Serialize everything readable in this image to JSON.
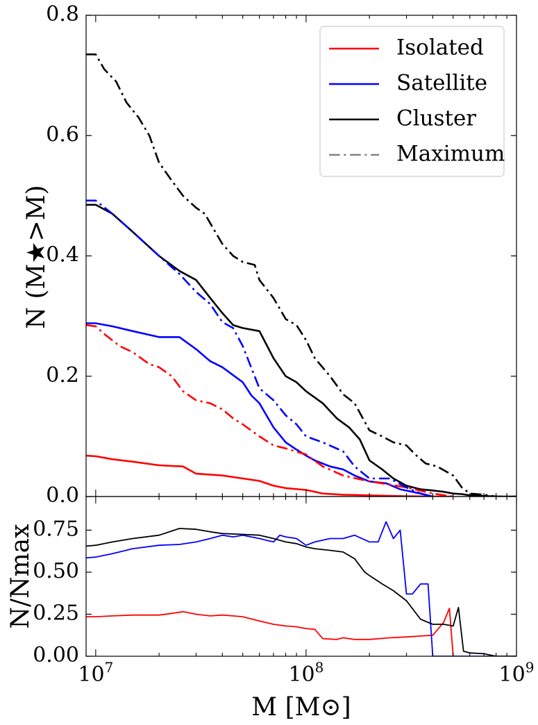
{
  "chart_data": [
    {
      "type": "line",
      "panel": "top",
      "title": "",
      "xlabel": "",
      "ylabel": "N (M★>M)",
      "xscale": "log",
      "xlim": [
        9000000,
        1000000000
      ],
      "ylim": [
        0,
        0.8
      ],
      "yticks": [
        "0.0",
        "0.2",
        "0.4",
        "0.6",
        "0.8"
      ],
      "legend_position": "top-right",
      "legend": [
        {
          "label": "Isolated",
          "color": "#ff0000",
          "style": "solid"
        },
        {
          "label": "Satellite",
          "color": "#0000ff",
          "style": "solid"
        },
        {
          "label": "Cluster",
          "color": "#000000",
          "style": "solid"
        },
        {
          "label": "Maximum",
          "color": "#808080",
          "style": "dashdot"
        }
      ],
      "series": [
        {
          "name": "Isolated",
          "color": "#ff0000",
          "style": "solid",
          "x": [
            9000000.0,
            10000000.0,
            12000000.0,
            15000000.0,
            20000000.0,
            26000000.0,
            30000000.0,
            40000000.0,
            50000000.0,
            60000000.0,
            70000000.0,
            80000000.0,
            100000000.0,
            120000000.0,
            150000000.0,
            200000000.0,
            250000000.0,
            300000000.0,
            400000000.0,
            500000000.0
          ],
          "y": [
            0.068,
            0.067,
            0.062,
            0.058,
            0.052,
            0.05,
            0.038,
            0.035,
            0.03,
            0.026,
            0.018,
            0.014,
            0.011,
            0.005,
            0.003,
            0.002,
            0.001,
            0.0005,
            0.0,
            0.0
          ]
        },
        {
          "name": "Satellite",
          "color": "#0000ff",
          "style": "solid",
          "x": [
            9000000.0,
            10000000.0,
            12000000.0,
            15000000.0,
            20000000.0,
            25000000.0,
            30000000.0,
            35000000.0,
            40000000.0,
            50000000.0,
            55000000.0,
            60000000.0,
            70000000.0,
            80000000.0,
            90000000.0,
            100000000.0,
            110000000.0,
            130000000.0,
            150000000.0,
            170000000.0,
            200000000.0,
            240000000.0,
            280000000.0,
            350000000.0,
            400000000.0
          ],
          "y": [
            0.288,
            0.288,
            0.283,
            0.275,
            0.265,
            0.265,
            0.245,
            0.225,
            0.215,
            0.19,
            0.168,
            0.155,
            0.115,
            0.09,
            0.078,
            0.068,
            0.06,
            0.05,
            0.045,
            0.035,
            0.025,
            0.022,
            0.012,
            0.005,
            0.0
          ]
        },
        {
          "name": "Cluster",
          "color": "#000000",
          "style": "solid",
          "x": [
            9000000.0,
            10000000.0,
            12000000.0,
            15000000.0,
            20000000.0,
            25000000.0,
            30000000.0,
            35000000.0,
            40000000.0,
            45000000.0,
            50000000.0,
            60000000.0,
            70000000.0,
            80000000.0,
            90000000.0,
            100000000.0,
            120000000.0,
            140000000.0,
            160000000.0,
            180000000.0,
            200000000.0,
            230000000.0,
            260000000.0,
            300000000.0,
            350000000.0,
            400000000.0,
            450000000.0,
            500000000.0,
            550000000.0,
            600000000.0,
            700000000.0,
            800000000.0,
            1000000000.0
          ],
          "y": [
            0.485,
            0.485,
            0.47,
            0.44,
            0.4,
            0.375,
            0.36,
            0.33,
            0.305,
            0.285,
            0.28,
            0.275,
            0.23,
            0.2,
            0.19,
            0.175,
            0.155,
            0.13,
            0.115,
            0.095,
            0.06,
            0.045,
            0.03,
            0.018,
            0.012,
            0.01,
            0.008,
            0.005,
            0.004,
            0.002,
            0.001,
            0.0,
            0.0
          ]
        },
        {
          "name": "Isolated maximum",
          "color": "#ff0000",
          "style": "dashdot",
          "x": [
            9000000.0,
            10000000.0,
            11000000.0,
            13000000.0,
            15000000.0,
            18000000.0,
            20000000.0,
            23000000.0,
            26000000.0,
            30000000.0,
            35000000.0,
            40000000.0,
            45000000.0,
            50000000.0,
            60000000.0,
            70000000.0,
            80000000.0,
            100000000.0,
            120000000.0,
            150000000.0,
            200000000.0,
            250000000.0,
            300000000.0,
            400000000.0,
            500000000.0
          ],
          "y": [
            0.285,
            0.283,
            0.27,
            0.25,
            0.24,
            0.22,
            0.215,
            0.2,
            0.175,
            0.16,
            0.155,
            0.145,
            0.13,
            0.12,
            0.1,
            0.085,
            0.08,
            0.07,
            0.05,
            0.035,
            0.025,
            0.02,
            0.015,
            0.005,
            0.0
          ]
        },
        {
          "name": "Satellite maximum",
          "color": "#0000ff",
          "style": "dashdot",
          "x": [
            9000000.0,
            10000000.0,
            12000000.0,
            15000000.0,
            20000000.0,
            25000000.0,
            30000000.0,
            35000000.0,
            40000000.0,
            45000000.0,
            50000000.0,
            60000000.0,
            70000000.0,
            80000000.0,
            90000000.0,
            100000000.0,
            120000000.0,
            150000000.0,
            170000000.0,
            200000000.0,
            250000000.0,
            300000000.0,
            350000000.0,
            400000000.0
          ],
          "y": [
            0.492,
            0.492,
            0.47,
            0.44,
            0.4,
            0.37,
            0.34,
            0.32,
            0.29,
            0.28,
            0.25,
            0.18,
            0.16,
            0.135,
            0.12,
            0.1,
            0.09,
            0.075,
            0.05,
            0.03,
            0.03,
            0.015,
            0.005,
            0.0
          ]
        },
        {
          "name": "Cluster maximum",
          "color": "#000000",
          "style": "dashdot",
          "x": [
            9000000.0,
            10000000.0,
            11000000.0,
            12500000.0,
            14000000.0,
            16000000.0,
            18000000.0,
            20000000.0,
            23000000.0,
            26000000.0,
            30000000.0,
            33000000.0,
            37000000.0,
            40000000.0,
            45000000.0,
            50000000.0,
            57000000.0,
            60000000.0,
            70000000.0,
            80000000.0,
            90000000.0,
            100000000.0,
            110000000.0,
            130000000.0,
            150000000.0,
            170000000.0,
            200000000.0,
            230000000.0,
            260000000.0,
            300000000.0,
            330000000.0,
            370000000.0,
            420000000.0,
            500000000.0,
            550000000.0,
            600000000.0,
            700000000.0,
            800000000.0,
            1000000000.0
          ],
          "y": [
            0.735,
            0.735,
            0.71,
            0.69,
            0.655,
            0.63,
            0.6,
            0.555,
            0.525,
            0.5,
            0.48,
            0.47,
            0.44,
            0.42,
            0.4,
            0.39,
            0.385,
            0.36,
            0.33,
            0.295,
            0.285,
            0.26,
            0.23,
            0.2,
            0.17,
            0.155,
            0.11,
            0.1,
            0.09,
            0.085,
            0.07,
            0.055,
            0.05,
            0.035,
            0.015,
            0.005,
            0.003,
            0.0,
            0.0
          ]
        }
      ]
    },
    {
      "type": "line",
      "panel": "bottom",
      "title": "",
      "xlabel": "M [M⊙]",
      "ylabel": "N/Nmax",
      "xscale": "log",
      "xlim": [
        9000000,
        1000000000
      ],
      "ylim": [
        0,
        0.95
      ],
      "yticks": [
        "0.00",
        "0.25",
        "0.50",
        "0.75"
      ],
      "xticks": [
        {
          "value": 10000000,
          "base": "10",
          "exp": "7"
        },
        {
          "value": 100000000,
          "base": "10",
          "exp": "8"
        },
        {
          "value": 1000000000,
          "base": "10",
          "exp": "9"
        }
      ],
      "series": [
        {
          "name": "Isolated",
          "color": "#ff0000",
          "style": "solid",
          "x": [
            9000000.0,
            10000000.0,
            12000000.0,
            15000000.0,
            20000000.0,
            23000000.0,
            26000000.0,
            30000000.0,
            35000000.0,
            40000000.0,
            45000000.0,
            50000000.0,
            60000000.0,
            70000000.0,
            80000000.0,
            90000000.0,
            100000000.0,
            110000000.0,
            120000000.0,
            140000000.0,
            150000000.0,
            170000000.0,
            200000000.0,
            250000000.0,
            300000000.0,
            350000000.0,
            400000000.0,
            450000000.0,
            480000000.0,
            500000000.0,
            520000000.0
          ],
          "y": [
            0.235,
            0.235,
            0.24,
            0.245,
            0.245,
            0.255,
            0.265,
            0.25,
            0.24,
            0.245,
            0.24,
            0.235,
            0.21,
            0.19,
            0.18,
            0.175,
            0.165,
            0.16,
            0.105,
            0.1,
            0.11,
            0.1,
            0.1,
            0.11,
            0.115,
            0.12,
            0.125,
            0.2,
            0.285,
            0.0,
            0.0
          ]
        },
        {
          "name": "Satellite",
          "color": "#0000ff",
          "style": "solid",
          "x": [
            9000000.0,
            10000000.0,
            12000000.0,
            15000000.0,
            20000000.0,
            25000000.0,
            30000000.0,
            35000000.0,
            40000000.0,
            45000000.0,
            50000000.0,
            60000000.0,
            70000000.0,
            75000000.0,
            80000000.0,
            90000000.0,
            100000000.0,
            110000000.0,
            130000000.0,
            150000000.0,
            170000000.0,
            200000000.0,
            220000000.0,
            240000000.0,
            260000000.0,
            280000000.0,
            300000000.0,
            320000000.0,
            350000000.0,
            380000000.0,
            400000000.0,
            420000000.0,
            1000000000.0
          ],
          "y": [
            0.585,
            0.59,
            0.61,
            0.64,
            0.66,
            0.665,
            0.68,
            0.7,
            0.72,
            0.71,
            0.72,
            0.7,
            0.68,
            0.72,
            0.71,
            0.7,
            0.66,
            0.68,
            0.7,
            0.7,
            0.72,
            0.68,
            0.68,
            0.8,
            0.7,
            0.75,
            0.37,
            0.37,
            0.43,
            0.43,
            0.0,
            0.0,
            0.0
          ]
        },
        {
          "name": "Cluster",
          "color": "#000000",
          "style": "solid",
          "x": [
            9000000.0,
            10000000.0,
            12000000.0,
            15000000.0,
            20000000.0,
            25000000.0,
            30000000.0,
            35000000.0,
            40000000.0,
            50000000.0,
            60000000.0,
            70000000.0,
            80000000.0,
            90000000.0,
            100000000.0,
            110000000.0,
            130000000.0,
            150000000.0,
            170000000.0,
            190000000.0,
            200000000.0,
            230000000.0,
            260000000.0,
            300000000.0,
            350000000.0,
            400000000.0,
            450000000.0,
            500000000.0,
            530000000.0,
            560000000.0,
            600000000.0,
            700000000.0,
            800000000.0,
            1000000000.0
          ],
          "y": [
            0.655,
            0.66,
            0.68,
            0.7,
            0.72,
            0.76,
            0.755,
            0.74,
            0.73,
            0.725,
            0.72,
            0.7,
            0.68,
            0.67,
            0.65,
            0.64,
            0.63,
            0.62,
            0.58,
            0.5,
            0.48,
            0.43,
            0.39,
            0.33,
            0.22,
            0.19,
            0.19,
            0.18,
            0.29,
            0.03,
            0.02,
            0.015,
            0.0,
            0.0
          ]
        }
      ]
    }
  ]
}
